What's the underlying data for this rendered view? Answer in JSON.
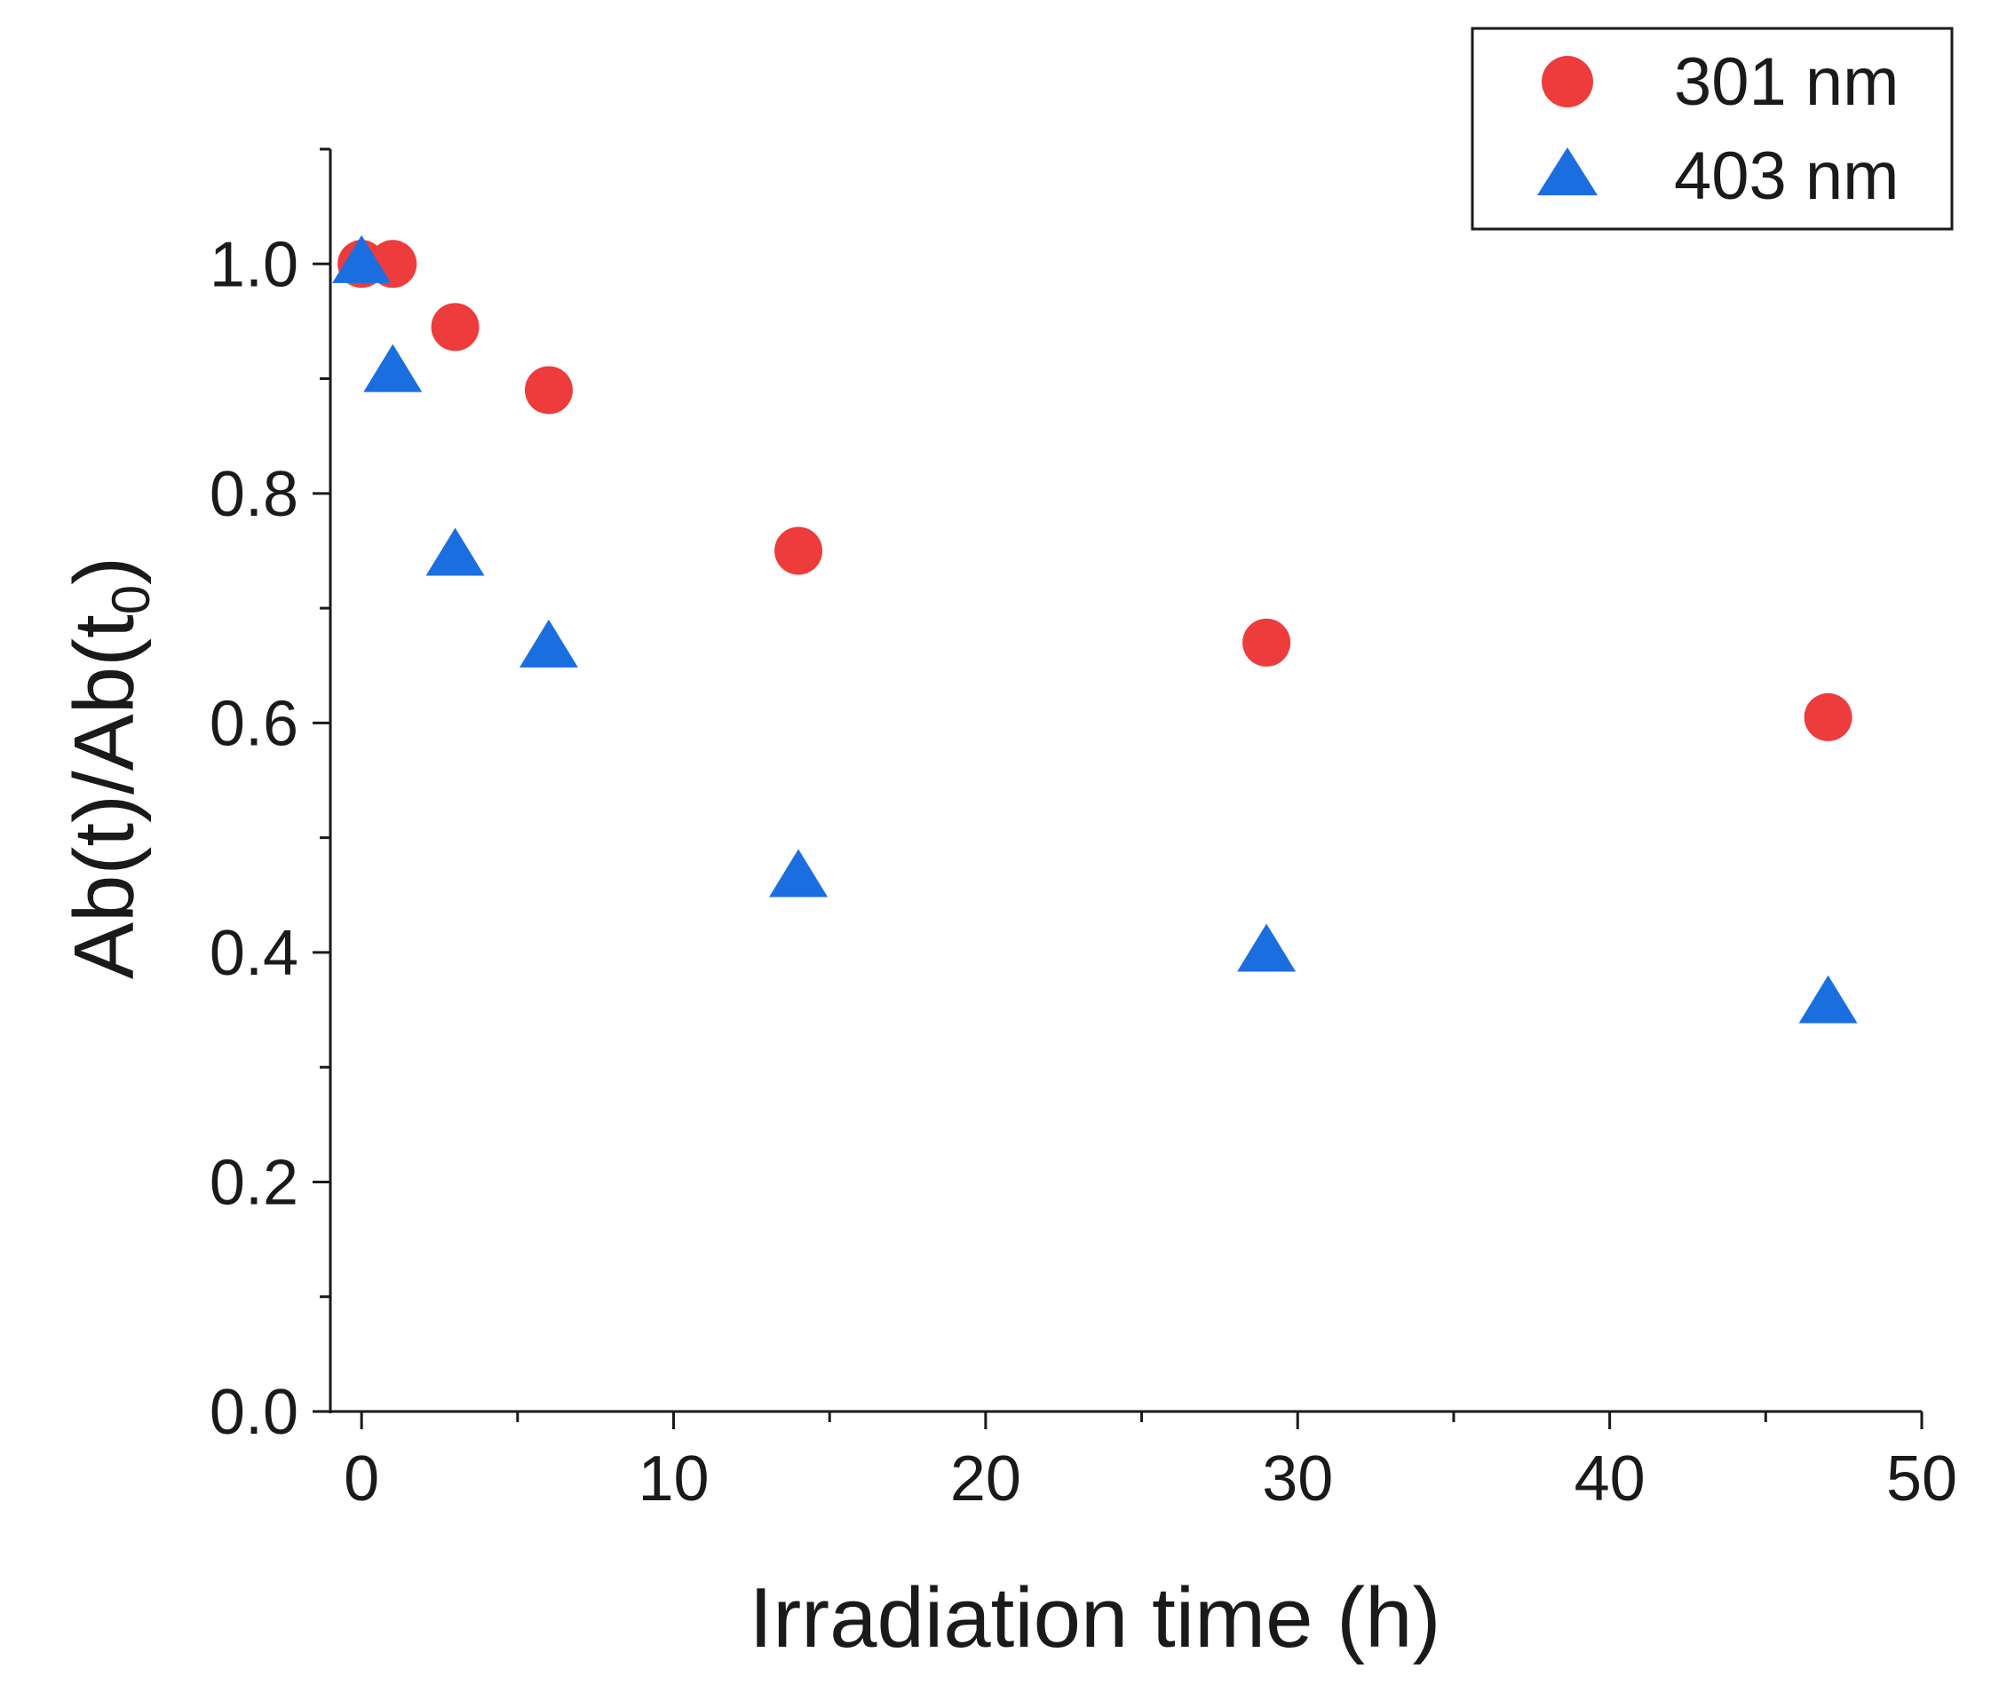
{
  "chart_data": {
    "type": "scatter",
    "title": "",
    "xlabel": "Irradiation time (h)",
    "ylabel": {
      "main": "Ab(t)/Ab(t",
      "subscript": "0",
      "close": ")"
    },
    "xlim": [
      -1,
      50
    ],
    "ylim": [
      0,
      1.1
    ],
    "xticks": [
      0,
      10,
      20,
      30,
      40,
      50
    ],
    "xtick_labels": [
      "0",
      "10",
      "20",
      "30",
      "40",
      "50"
    ],
    "yticks": [
      0,
      0.2,
      0.4,
      0.6,
      0.8,
      1.0
    ],
    "ytick_labels": [
      "0.0",
      "0.2",
      "0.4",
      "0.6",
      "0.8",
      "1.0"
    ],
    "grid": false,
    "legend_position": "top-right",
    "series": [
      {
        "name": "301 nm",
        "marker": "circle",
        "color": "#ee3b3b",
        "x": [
          0,
          1,
          3,
          6,
          14,
          29,
          47
        ],
        "y": [
          1.0,
          1.0,
          0.945,
          0.89,
          0.75,
          0.67,
          0.605
        ]
      },
      {
        "name": "403 nm",
        "marker": "triangle",
        "color": "#1a6ee0",
        "x": [
          0,
          1,
          3,
          6,
          14,
          29,
          47
        ],
        "y": [
          1.0,
          0.905,
          0.745,
          0.665,
          0.465,
          0.4,
          0.355
        ]
      }
    ]
  }
}
